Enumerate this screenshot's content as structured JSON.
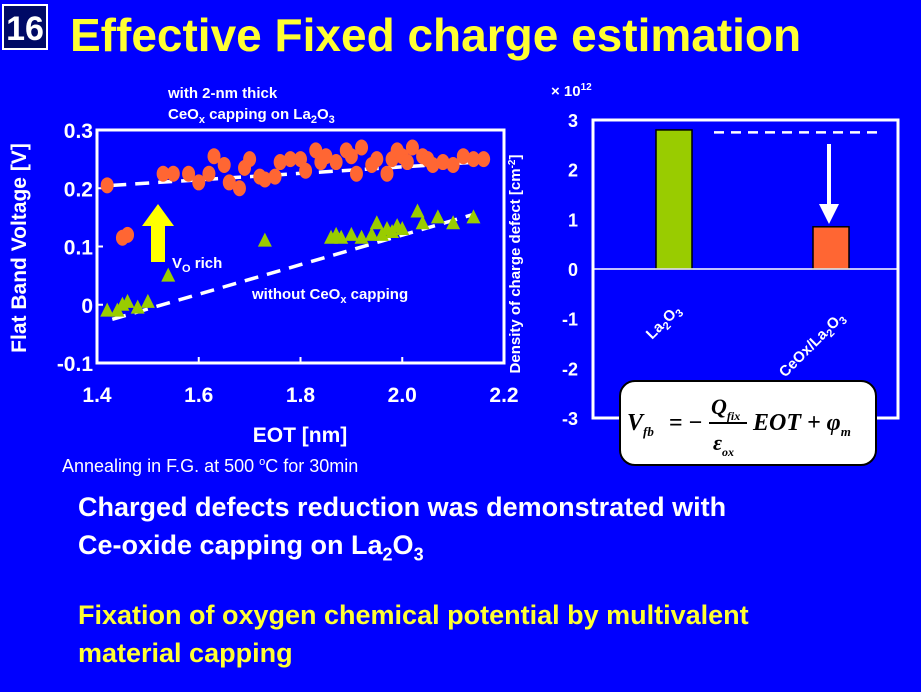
{
  "slide": {
    "number": "16",
    "title": "Effective Fixed charge estimation"
  },
  "bullets": {
    "line1a": "Charged defects reduction was demonstrated with",
    "line1b_prefix": "Ce-oxide capping on La",
    "line1b_sub1": "2",
    "line1b_mid": "O",
    "line1b_sub2": "3",
    "line2a": "Fixation of oxygen chemical potential by multivalent",
    "line2b": "material capping"
  },
  "annealing_note": {
    "prefix": "Annealing in F.G. at 500 ",
    "sup": "o",
    "suffix": "C for 30min"
  },
  "colors": {
    "background": "#0000ff",
    "title": "#ffff33",
    "orange": "#ff6633",
    "green": "#99cc00",
    "arrow_yellow": "#ffff00"
  },
  "chart_data": [
    {
      "type": "scatter",
      "xlabel": "EOT [nm]",
      "ylabel": "Flat Band Voltage [V]",
      "xlim": [
        1.4,
        2.2
      ],
      "ylim": [
        -0.1,
        0.3
      ],
      "x_ticks": [
        "1.4",
        "1.6",
        "1.8",
        "2.0",
        "2.2"
      ],
      "y_ticks": [
        "0.3",
        "0.2",
        "0.1",
        "0",
        "-0.1"
      ],
      "annotations": {
        "capped_line1": "with 2-nm thick",
        "capped_line2_a": "CeO",
        "capped_line2_sub1": "x",
        "capped_line2_b": " capping on La",
        "capped_line2_sub2": "2",
        "capped_line2_c": "O",
        "capped_line2_sub3": "3",
        "vo_main": "V",
        "vo_sub": "O",
        "vo_rest": " rich",
        "uncapped_a": "without CeO",
        "uncapped_sub": "x",
        "uncapped_b": " capping"
      },
      "series": [
        {
          "marker": "orange-circle",
          "fit": [
            [
              1.43,
              0.205
            ],
            [
              2.15,
              0.245
            ]
          ],
          "points": [
            [
              1.42,
              0.205
            ],
            [
              1.45,
              0.115
            ],
            [
              1.46,
              0.12
            ],
            [
              1.53,
              0.225
            ],
            [
              1.55,
              0.225
            ],
            [
              1.58,
              0.225
            ],
            [
              1.6,
              0.21
            ],
            [
              1.62,
              0.225
            ],
            [
              1.63,
              0.255
            ],
            [
              1.65,
              0.24
            ],
            [
              1.66,
              0.21
            ],
            [
              1.68,
              0.2
            ],
            [
              1.69,
              0.235
            ],
            [
              1.7,
              0.25
            ],
            [
              1.72,
              0.22
            ],
            [
              1.73,
              0.215
            ],
            [
              1.75,
              0.22
            ],
            [
              1.76,
              0.245
            ],
            [
              1.78,
              0.25
            ],
            [
              1.8,
              0.25
            ],
            [
              1.81,
              0.23
            ],
            [
              1.83,
              0.265
            ],
            [
              1.84,
              0.245
            ],
            [
              1.85,
              0.255
            ],
            [
              1.87,
              0.245
            ],
            [
              1.89,
              0.265
            ],
            [
              1.9,
              0.255
            ],
            [
              1.91,
              0.225
            ],
            [
              1.92,
              0.27
            ],
            [
              1.94,
              0.24
            ],
            [
              1.95,
              0.25
            ],
            [
              1.97,
              0.225
            ],
            [
              1.98,
              0.25
            ],
            [
              1.99,
              0.265
            ],
            [
              2.0,
              0.255
            ],
            [
              2.01,
              0.245
            ],
            [
              2.02,
              0.27
            ],
            [
              2.04,
              0.255
            ],
            [
              2.05,
              0.25
            ],
            [
              2.06,
              0.24
            ],
            [
              2.08,
              0.245
            ],
            [
              2.1,
              0.24
            ],
            [
              2.12,
              0.255
            ],
            [
              2.14,
              0.25
            ],
            [
              2.16,
              0.25
            ]
          ]
        },
        {
          "marker": "green-triangle",
          "fit": [
            [
              1.43,
              -0.025
            ],
            [
              2.14,
              0.155
            ]
          ],
          "points": [
            [
              1.42,
              -0.01
            ],
            [
              1.44,
              -0.01
            ],
            [
              1.45,
              0.0
            ],
            [
              1.46,
              0.005
            ],
            [
              1.48,
              -0.005
            ],
            [
              1.5,
              0.005
            ],
            [
              1.54,
              0.05
            ],
            [
              1.73,
              0.11
            ],
            [
              1.86,
              0.115
            ],
            [
              1.87,
              0.12
            ],
            [
              1.88,
              0.115
            ],
            [
              1.9,
              0.12
            ],
            [
              1.92,
              0.115
            ],
            [
              1.94,
              0.12
            ],
            [
              1.95,
              0.14
            ],
            [
              1.96,
              0.12
            ],
            [
              1.97,
              0.13
            ],
            [
              1.98,
              0.125
            ],
            [
              1.99,
              0.135
            ],
            [
              2.0,
              0.13
            ],
            [
              2.03,
              0.16
            ],
            [
              2.04,
              0.14
            ],
            [
              2.07,
              0.15
            ],
            [
              2.1,
              0.14
            ],
            [
              2.14,
              0.15
            ]
          ]
        }
      ]
    },
    {
      "type": "bar",
      "multiplier_prefix": "× 10",
      "multiplier_exp": "12",
      "ylabel_a": "Density of charge defect [cm",
      "ylabel_sup": "-2",
      "ylabel_b": "]",
      "ylim": [
        -3,
        3
      ],
      "y_ticks": [
        "3",
        "2",
        "1",
        "0",
        "-1",
        "-2",
        "-3"
      ],
      "categories": [
        {
          "main": "La",
          "sub1": "2",
          "mid": "O",
          "sub2": "3",
          "tail": ""
        },
        {
          "main": "CeOx/La",
          "sub1": "2",
          "mid": "O",
          "sub2": "3",
          "tail": ""
        }
      ],
      "values": [
        2.8,
        0.85
      ],
      "bar_colors": [
        "#99cc00",
        "#ff6633"
      ],
      "reference_level": 2.75
    }
  ],
  "equation": {
    "lhs": "V",
    "lhs_sub": "fb",
    "equals": "= −",
    "num": "Q",
    "num_sub": "fix",
    "den": "ε",
    "den_sub": "ox",
    "after": "EOT + φ",
    "after_sub": "m"
  }
}
